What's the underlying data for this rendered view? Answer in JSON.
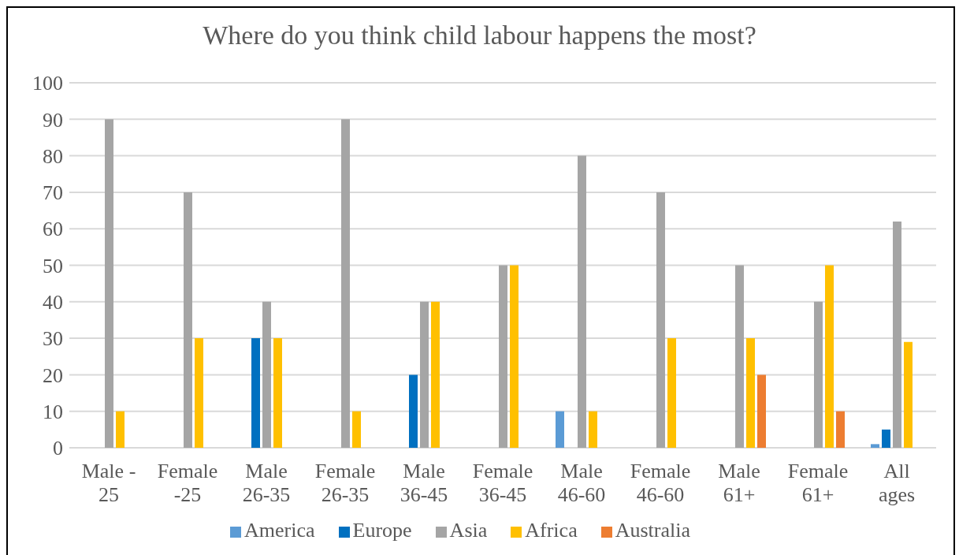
{
  "chart_data": {
    "type": "bar",
    "title": "Where do you think child labour happens the most?",
    "categories": [
      "Male - 25",
      "Female -25",
      "Male 26-35",
      "Female 26-35",
      "Male 36-45",
      "Female 36-45",
      "Male 46-60",
      "Female 46-60",
      "Male 61+",
      "Female 61+",
      "All ages"
    ],
    "series": [
      {
        "name": "America",
        "color": "#5b9bd5",
        "values": [
          0,
          0,
          0,
          0,
          0,
          0,
          10,
          0,
          0,
          0,
          1
        ]
      },
      {
        "name": "Europe",
        "color": "#0070c0",
        "values": [
          0,
          0,
          30,
          0,
          20,
          0,
          0,
          0,
          0,
          0,
          5
        ]
      },
      {
        "name": "Asia",
        "color": "#a5a5a5",
        "values": [
          90,
          70,
          40,
          90,
          40,
          50,
          80,
          70,
          50,
          40,
          62
        ]
      },
      {
        "name": "Africa",
        "color": "#ffc000",
        "values": [
          10,
          30,
          30,
          10,
          40,
          50,
          10,
          30,
          30,
          50,
          29
        ]
      },
      {
        "name": "Australia",
        "color": "#ed7d31",
        "values": [
          0,
          0,
          0,
          0,
          0,
          0,
          0,
          0,
          20,
          10,
          0
        ]
      }
    ],
    "ylim": [
      0,
      100
    ],
    "yticks": [
      0,
      10,
      20,
      30,
      40,
      50,
      60,
      70,
      80,
      90,
      100
    ],
    "grid": "y",
    "legend": "bottom"
  }
}
